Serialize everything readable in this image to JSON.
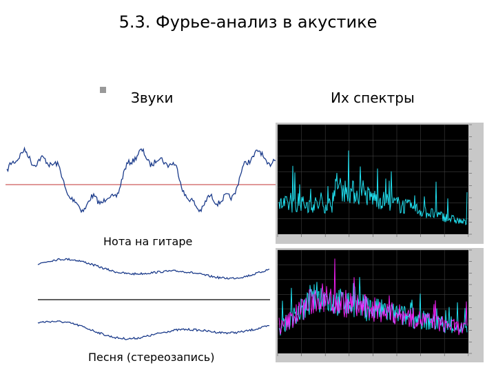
{
  "title": "5.3. Фурье-анализ в акустике",
  "left_heading": "Звуки",
  "right_heading": "Их спектры",
  "captions": [
    "Нота на гитаре",
    "Песня (стереозапись)"
  ]
}
